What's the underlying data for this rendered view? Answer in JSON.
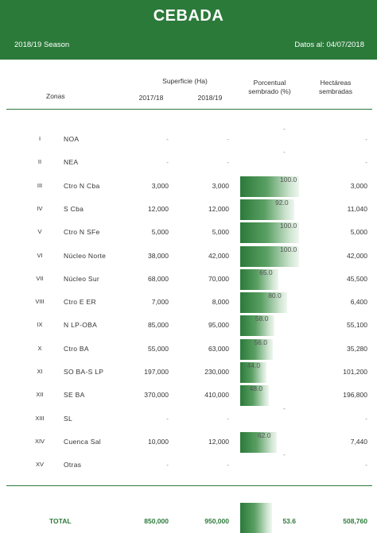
{
  "header": {
    "title": "CEBADA",
    "season": "2018/19 Season",
    "date": "Datos al: 04/07/2018"
  },
  "columns": {
    "zonas": "Zonas",
    "superficie": "Superficie (Ha)",
    "y1": "2017/18",
    "y2": "2018/19",
    "porcentual_1": "Porcentual",
    "porcentual_2": "sembrado (%)",
    "hectareas_1": "Hectáreas",
    "hectareas_2": "sembradas"
  },
  "colors": {
    "accent": "#2b7a3a"
  },
  "rows": [
    {
      "roman": "I",
      "zona": "NOA",
      "v17": "-",
      "v18": "-",
      "pct": "-",
      "pct_value": 0,
      "hec": "-"
    },
    {
      "roman": "II",
      "zona": "NEA",
      "v17": "-",
      "v18": "-",
      "pct": "-",
      "pct_value": 0,
      "hec": "-"
    },
    {
      "roman": "III",
      "zona": "Ctro N Cba",
      "v17": "3,000",
      "v18": "3,000",
      "pct": "100.0",
      "pct_value": 100,
      "hec": "3,000"
    },
    {
      "roman": "IV",
      "zona": "S Cba",
      "v17": "12,000",
      "v18": "12,000",
      "pct": "92.0",
      "pct_value": 92,
      "hec": "11,040"
    },
    {
      "roman": "V",
      "zona": "Ctro N SFe",
      "v17": "5,000",
      "v18": "5,000",
      "pct": "100.0",
      "pct_value": 100,
      "hec": "5,000"
    },
    {
      "roman": "VI",
      "zona": "Núcleo Norte",
      "v17": "38,000",
      "v18": "42,000",
      "pct": "100.0",
      "pct_value": 100,
      "hec": "42,000"
    },
    {
      "roman": "VII",
      "zona": "Núcleo Sur",
      "v17": "68,000",
      "v18": "70,000",
      "pct": "65.0",
      "pct_value": 65,
      "hec": "45,500"
    },
    {
      "roman": "VIII",
      "zona": "Ctro E ER",
      "v17": "7,000",
      "v18": "8,000",
      "pct": "80.0",
      "pct_value": 80,
      "hec": "6,400"
    },
    {
      "roman": "IX",
      "zona": "N LP-OBA",
      "v17": "85,000",
      "v18": "95,000",
      "pct": "58.0",
      "pct_value": 58,
      "hec": "55,100"
    },
    {
      "roman": "X",
      "zona": "Ctro BA",
      "v17": "55,000",
      "v18": "63,000",
      "pct": "56.0",
      "pct_value": 56,
      "hec": "35,280"
    },
    {
      "roman": "XI",
      "zona": "SO BA-S LP",
      "v17": "197,000",
      "v18": "230,000",
      "pct": "44.0",
      "pct_value": 44,
      "hec": "101,200"
    },
    {
      "roman": "XII",
      "zona": "SE BA",
      "v17": "370,000",
      "v18": "410,000",
      "pct": "48.0",
      "pct_value": 48,
      "hec": "196,800"
    },
    {
      "roman": "XIII",
      "zona": "SL",
      "v17": "-",
      "v18": "-",
      "pct": "-",
      "pct_value": 0,
      "hec": "-"
    },
    {
      "roman": "XIV",
      "zona": "Cuenca Sal",
      "v17": "10,000",
      "v18": "12,000",
      "pct": "62.0",
      "pct_value": 62,
      "hec": "7,440"
    },
    {
      "roman": "XV",
      "zona": "Otras",
      "v17": "-",
      "v18": "-",
      "pct": "-",
      "pct_value": 0,
      "hec": "-"
    }
  ],
  "total": {
    "label": "TOTAL",
    "v17": "850,000",
    "v18": "950,000",
    "pct": "53.6",
    "pct_value": 53.6,
    "hec": "508,760"
  }
}
